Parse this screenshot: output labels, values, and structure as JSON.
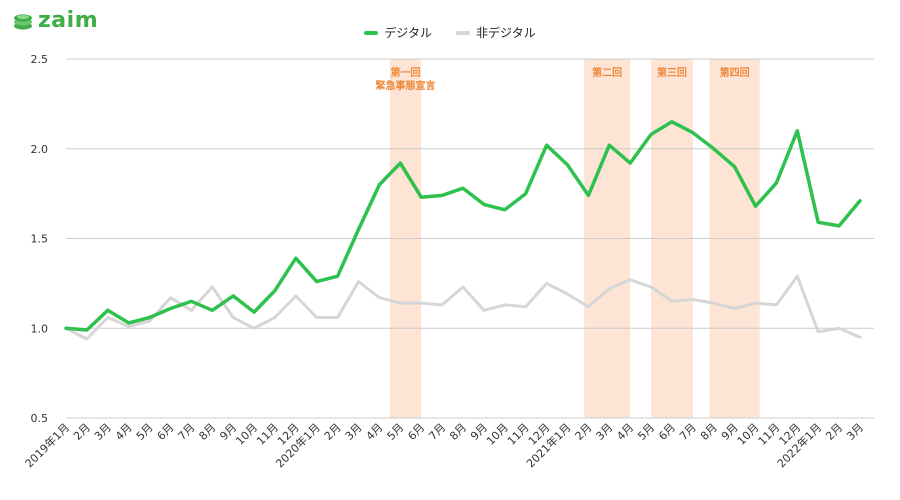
{
  "brand": {
    "name": "zaim"
  },
  "colors": {
    "digital": "#2fc14e",
    "non_digital": "#d6d6d6",
    "band": "#fde4d5",
    "band_text": "#ee8a3c",
    "grid": "#cccccc",
    "brand": "#3fae49"
  },
  "chart_data": {
    "type": "line",
    "title": "",
    "xlabel": "",
    "ylabel": "",
    "ylim": [
      0.5,
      2.5
    ],
    "yticks": [
      "0.5",
      "1.0",
      "1.5",
      "2.0",
      "2.5"
    ],
    "grid": true,
    "legend_position": "top-center",
    "categories": [
      "2019年1月",
      "2月",
      "3月",
      "4月",
      "5月",
      "6月",
      "7月",
      "8月",
      "9月",
      "10月",
      "11月",
      "12月",
      "2020年1月",
      "2月",
      "3月",
      "4月",
      "5月",
      "6月",
      "7月",
      "8月",
      "9月",
      "10月",
      "11月",
      "12月",
      "2021年1月",
      "2月",
      "3月",
      "4月",
      "5月",
      "6月",
      "7月",
      "8月",
      "9月",
      "10月",
      "11月",
      "12月",
      "2022年1月",
      "2月",
      "3月"
    ],
    "series": [
      {
        "name": "デジタル",
        "color": "#2fc14e",
        "values": [
          1.0,
          0.99,
          1.1,
          1.03,
          1.06,
          1.11,
          1.15,
          1.1,
          1.18,
          1.09,
          1.21,
          1.39,
          1.26,
          1.29,
          1.55,
          1.8,
          1.92,
          1.73,
          1.74,
          1.78,
          1.69,
          1.66,
          1.75,
          2.02,
          1.91,
          1.74,
          2.02,
          1.92,
          2.08,
          2.15,
          2.09,
          2.0,
          1.9,
          1.68,
          1.81,
          2.1,
          1.59,
          1.57,
          1.71
        ]
      },
      {
        "name": "非デジタル",
        "color": "#d6d6d6",
        "values": [
          1.0,
          0.94,
          1.06,
          1.01,
          1.04,
          1.17,
          1.1,
          1.23,
          1.06,
          1.0,
          1.06,
          1.18,
          1.06,
          1.06,
          1.26,
          1.17,
          1.14,
          1.14,
          1.13,
          1.23,
          1.1,
          1.13,
          1.12,
          1.25,
          1.19,
          1.12,
          1.22,
          1.27,
          1.23,
          1.15,
          1.16,
          1.14,
          1.11,
          1.14,
          1.13,
          1.29,
          0.98,
          1.0,
          0.95
        ]
      }
    ],
    "periods": [
      {
        "label_lines": [
          "第一回",
          "緊急事態宣言"
        ],
        "start": 15.5,
        "end": 17
      },
      {
        "label_lines": [
          "第二回"
        ],
        "start": 24.8,
        "end": 27
      },
      {
        "label_lines": [
          "第三回"
        ],
        "start": 28,
        "end": 30
      },
      {
        "label_lines": [
          "第四回"
        ],
        "start": 30.8,
        "end": 33.2
      }
    ]
  }
}
